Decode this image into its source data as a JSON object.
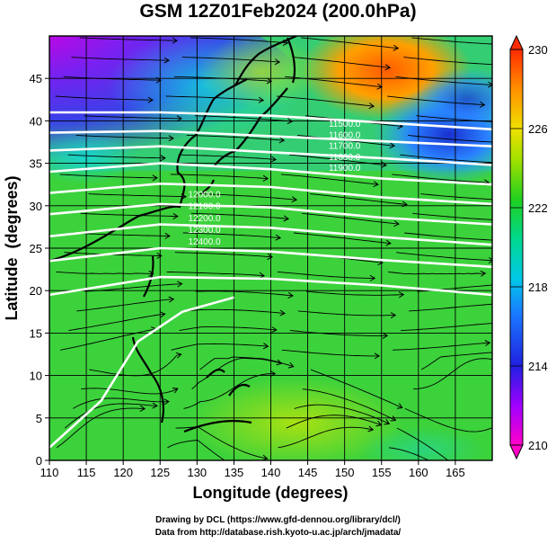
{
  "title": "GSM 12Z01Feb2024 (200.0hPa)",
  "xlabel": "Longitude (degrees)",
  "ylabel": "Latitude  (degrees)",
  "credits": {
    "line1": "Drawing by DCL (https://www.gfd-dennou.org/library/dcl/)",
    "line2": "Data from http://database.rish.kyoto-u.ac.jp/arch/jmadata/"
  },
  "chart_data": {
    "type": "heatmap",
    "variable": "temperature (shaded) with geopotential height contours (white) and wind streamlines",
    "x_range": [
      110,
      170
    ],
    "y_range": [
      0,
      50
    ],
    "x_ticks": [
      "110",
      "115",
      "120",
      "125",
      "130",
      "135",
      "140",
      "145",
      "150",
      "155",
      "160",
      "165"
    ],
    "y_ticks": [
      "0",
      "5",
      "10",
      "15",
      "20",
      "25",
      "30",
      "35",
      "40",
      "45"
    ],
    "colorbar": {
      "min": 210,
      "max": 230,
      "tick_labels": [
        "210",
        "214",
        "218",
        "222",
        "226",
        "230"
      ]
    },
    "contour_labels": [
      "11500.0",
      "11600.0",
      "11700.0",
      "11800.0",
      "11900.0",
      "12000.0",
      "12100.0",
      "12200.0",
      "12300.0",
      "12400.0"
    ],
    "grid": true
  }
}
